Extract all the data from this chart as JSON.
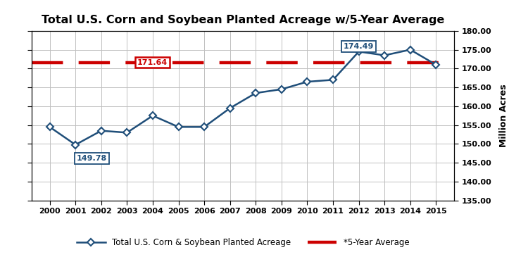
{
  "title": "Total U.S. Corn and Soybean Planted Acreage w/5-Year Average",
  "years": [
    2000,
    2001,
    2002,
    2003,
    2004,
    2005,
    2006,
    2007,
    2008,
    2009,
    2010,
    2011,
    2012,
    2013,
    2014,
    2015
  ],
  "values": [
    154.5,
    149.78,
    153.5,
    153.0,
    157.5,
    154.5,
    154.5,
    159.5,
    163.5,
    164.5,
    166.5,
    167.0,
    174.49,
    173.5,
    175.0,
    171.0
  ],
  "five_yr_avg": 171.64,
  "ylim_min": 135.0,
  "ylim_max": 180.0,
  "yticks": [
    135.0,
    140.0,
    145.0,
    150.0,
    155.0,
    160.0,
    165.0,
    170.0,
    175.0,
    180.0
  ],
  "line_color": "#1F4E79",
  "avg_line_color": "#CC0000",
  "marker": "D",
  "marker_facecolor": "white",
  "marker_edgecolor": "#1F4E79",
  "background_color": "#FFFFFF",
  "grid_color": "#C0C0C0",
  "ylabel": "Million Acres",
  "legend_line_label": "Total U.S. Corn & Soybean Planted Acreage",
  "legend_avg_label": "*5-Year Average",
  "annotation_min_year": 2001,
  "annotation_min_val": 149.78,
  "annotation_max_year": 2012,
  "annotation_max_val": 174.49,
  "annotation_avg_year": 2003,
  "annotation_avg_val": 171.64
}
